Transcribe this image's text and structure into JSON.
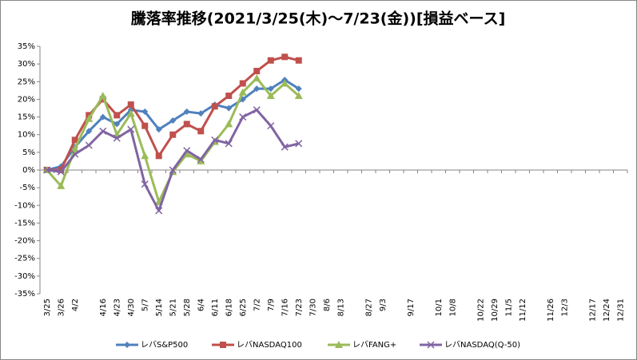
{
  "chart_data": {
    "type": "line",
    "title": "騰落率推移(2021/3/25(木)～7/23(金))[損益ベース]",
    "categories": [
      "3/25",
      "3/26",
      "4/2",
      null,
      "4/16",
      "4/23",
      "4/30",
      "5/7",
      "5/14",
      "5/21",
      "5/28",
      "6/4",
      "6/11",
      "6/18",
      "6/25",
      "7/2",
      "7/9",
      "7/16",
      "7/23",
      "7/30",
      "8/6",
      "8/13",
      null,
      "8/27",
      "9/3",
      null,
      "9/17",
      null,
      "10/1",
      "10/8",
      null,
      "10/22",
      "10/29",
      "11/5",
      "11/12",
      null,
      "11/26",
      "12/3",
      null,
      "12/17",
      "12/24",
      "12/31"
    ],
    "series": [
      {
        "name": "レバS&P500",
        "color": "#4f81bd",
        "marker": "diamond",
        "values": [
          0,
          1,
          6.5,
          11,
          15,
          13,
          17,
          16.5,
          11.5,
          14,
          16.5,
          16,
          18.5,
          17.5,
          20,
          23,
          23,
          25.5,
          23,
          null,
          null,
          null,
          null,
          null,
          null,
          null,
          null,
          null,
          null,
          null,
          null,
          null,
          null,
          null,
          null,
          null,
          null,
          null,
          null,
          null,
          null,
          null
        ]
      },
      {
        "name": "レバNASDAQ100",
        "color": "#c0504d",
        "marker": "square",
        "values": [
          0,
          0,
          8.5,
          15.5,
          20,
          15.5,
          18.5,
          12.5,
          4,
          10,
          13,
          11,
          18,
          21,
          24.5,
          28,
          31,
          32,
          31,
          null,
          null,
          null,
          null,
          null,
          null,
          null,
          null,
          null,
          null,
          null,
          null,
          null,
          null,
          null,
          null,
          null,
          null,
          null,
          null,
          null,
          null,
          null
        ]
      },
      {
        "name": "レバFANG+",
        "color": "#9bbb59",
        "marker": "triangle",
        "values": [
          0,
          -4.5,
          6,
          14.5,
          21,
          10,
          16,
          4,
          -9,
          -0.5,
          4.5,
          2.5,
          8,
          13,
          22,
          26,
          21,
          24.5,
          21,
          null,
          null,
          null,
          null,
          null,
          null,
          null,
          null,
          null,
          null,
          null,
          null,
          null,
          null,
          null,
          null,
          null,
          null,
          null,
          null,
          null,
          null,
          null
        ]
      },
      {
        "name": "レバNASDAQ(Q-50)",
        "color": "#8064a2",
        "marker": "x",
        "values": [
          0,
          -0.5,
          4.5,
          7,
          11,
          9,
          11.5,
          -4,
          -11.5,
          0,
          5.5,
          3,
          8.5,
          7.5,
          15,
          17,
          12.5,
          6.5,
          7.5,
          null,
          null,
          null,
          null,
          null,
          null,
          null,
          null,
          null,
          null,
          null,
          null,
          null,
          null,
          null,
          null,
          null,
          null,
          null,
          null,
          null,
          null,
          null
        ]
      }
    ],
    "ylim": [
      -35,
      35
    ],
    "yticks": [
      {
        "value": -35,
        "label": "-35%"
      },
      {
        "value": -30,
        "label": "-30%"
      },
      {
        "value": -25,
        "label": "-25%"
      },
      {
        "value": -20,
        "label": "-20%"
      },
      {
        "value": -15,
        "label": "-15%"
      },
      {
        "value": -10,
        "label": "-10%"
      },
      {
        "value": -5,
        "label": "-5%"
      },
      {
        "value": 0,
        "label": "0%"
      },
      {
        "value": 5,
        "label": "5%"
      },
      {
        "value": 10,
        "label": "10%"
      },
      {
        "value": 15,
        "label": "15%"
      },
      {
        "value": 20,
        "label": "20%"
      },
      {
        "value": 25,
        "label": "25%"
      },
      {
        "value": 30,
        "label": "30%"
      },
      {
        "value": 35,
        "label": "35%"
      }
    ],
    "grid": false,
    "legend": "bottom"
  }
}
